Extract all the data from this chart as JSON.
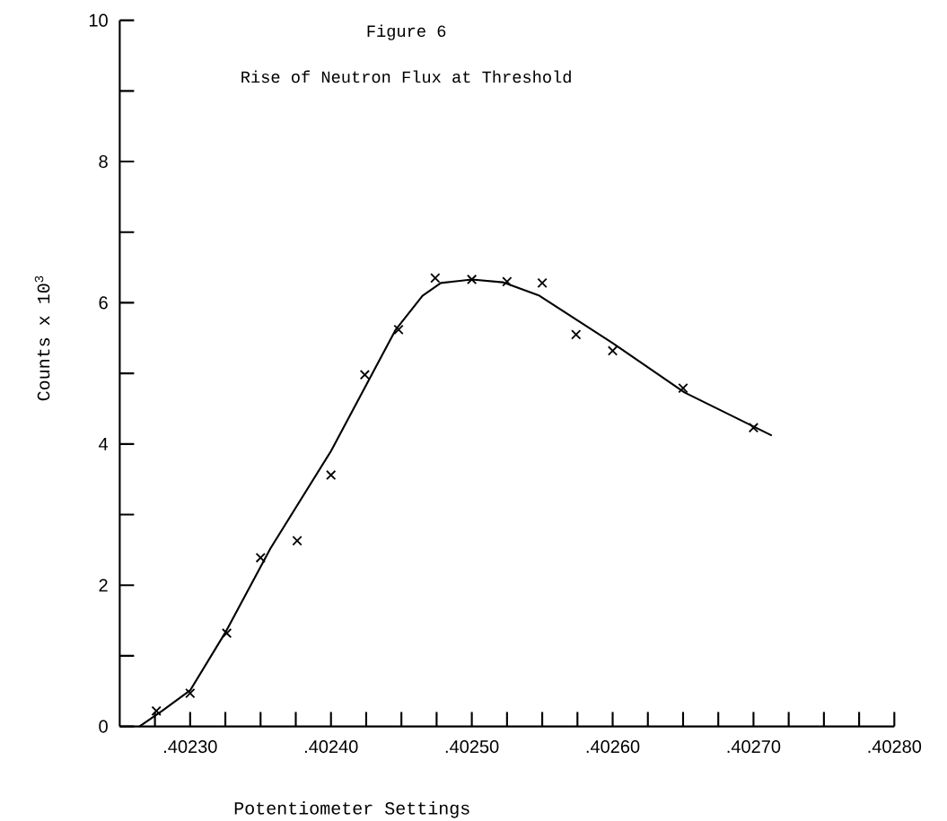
{
  "chart_data": {
    "type": "scatter",
    "title": "Figure 6",
    "subtitle": "Rise of Neutron Flux at Threshold",
    "xlabel": "Potentiometer Settings",
    "ylabel": "Counts  x  10$^{3}$",
    "xlim": [
      0.40225,
      0.4028
    ],
    "ylim": [
      0,
      10
    ],
    "xticks": [
      {
        "value": 0.402275,
        "label": null
      },
      {
        "value": 0.4023,
        "label": ".40230"
      },
      {
        "value": 0.402325,
        "label": null
      },
      {
        "value": 0.40235,
        "label": null
      },
      {
        "value": 0.402375,
        "label": null
      },
      {
        "value": 0.4024,
        "label": ".40240"
      },
      {
        "value": 0.402425,
        "label": null
      },
      {
        "value": 0.40245,
        "label": null
      },
      {
        "value": 0.402475,
        "label": null
      },
      {
        "value": 0.4025,
        "label": ".40250"
      },
      {
        "value": 0.402525,
        "label": null
      },
      {
        "value": 0.40255,
        "label": null
      },
      {
        "value": 0.402575,
        "label": null
      },
      {
        "value": 0.4026,
        "label": ".40260"
      },
      {
        "value": 0.402625,
        "label": null
      },
      {
        "value": 0.40265,
        "label": null
      },
      {
        "value": 0.402675,
        "label": null
      },
      {
        "value": 0.4027,
        "label": ".40270"
      },
      {
        "value": 0.402725,
        "label": null
      },
      {
        "value": 0.40275,
        "label": null
      },
      {
        "value": 0.402775,
        "label": null
      },
      {
        "value": 0.4028,
        "label": ".40280"
      }
    ],
    "yticks": [
      0,
      {
        "value": 1,
        "label": null
      },
      2,
      {
        "value": 3,
        "label": null
      },
      4,
      {
        "value": 5,
        "label": null
      },
      6,
      {
        "value": 7,
        "label": null
      },
      8,
      {
        "value": 9,
        "label": null
      },
      10
    ],
    "series": [
      {
        "marker": "cross",
        "color": "#000000",
        "x": [
          0.402276,
          0.4023,
          0.402326,
          0.40235,
          0.402376,
          0.4024,
          0.402424,
          0.402448,
          0.402474,
          0.4025,
          0.402525,
          0.40255,
          0.402574,
          0.4026,
          0.40265,
          0.4027
        ],
        "values": [
          0.22,
          0.47,
          1.32,
          2.39,
          2.63,
          3.56,
          4.98,
          5.62,
          6.35,
          6.33,
          6.3,
          6.28,
          5.55,
          5.32,
          4.79,
          4.23
        ]
      },
      {
        "type": "line",
        "marker": "none",
        "line_style": "solid",
        "color": "#000000",
        "x": [
          0.402264,
          0.40228,
          0.4023,
          0.402325,
          0.402357,
          0.4024,
          0.402446,
          0.402465,
          0.402478,
          0.4025,
          0.402522,
          0.402548,
          0.4026,
          0.402651,
          0.402713
        ],
        "values": [
          0,
          0.22,
          0.51,
          1.33,
          2.52,
          3.9,
          5.62,
          6.1,
          6.28,
          6.33,
          6.29,
          6.1,
          5.43,
          4.73,
          4.12
        ]
      }
    ]
  }
}
